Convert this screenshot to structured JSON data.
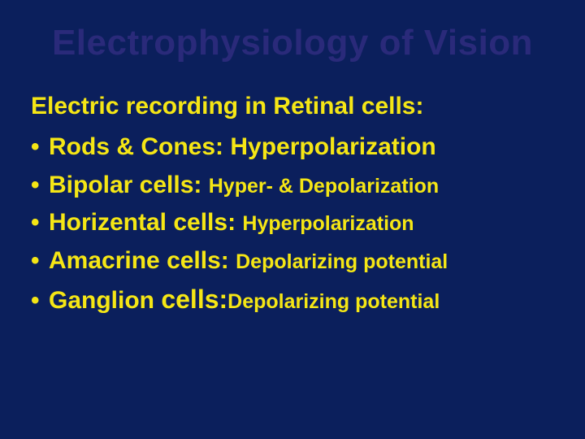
{
  "colors": {
    "background": "#0b1f5c",
    "title": "#2a2a7a",
    "body_text": "#f5e615"
  },
  "typography": {
    "font_family": "Comic Sans MS",
    "title_fontsize_pt": 34,
    "body_fontsize_pt": 22,
    "detail_fontsize_pt": 19
  },
  "slide": {
    "title": "Electrophysiology of Vision",
    "heading": "Electric recording in Retinal cells:",
    "items": [
      {
        "label": "Rods & Cones: ",
        "detail": "Hyperpolarization",
        "detail_small": false
      },
      {
        "label": "Bipolar cells: ",
        "detail": "Hyper- & Depolarization",
        "detail_small": true
      },
      {
        "label": "Horizental cells: ",
        "detail": "Hyperpolarization",
        "detail_small": true
      },
      {
        "label": "Amacrine cells: ",
        "detail": "Depolarizing potential",
        "detail_small": true
      },
      {
        "label": "Ganglion ",
        "label2": "cells:",
        "detail": "Depolarizing potential",
        "detail_small": true,
        "ganglion": true
      }
    ],
    "bullet_char": "•"
  }
}
